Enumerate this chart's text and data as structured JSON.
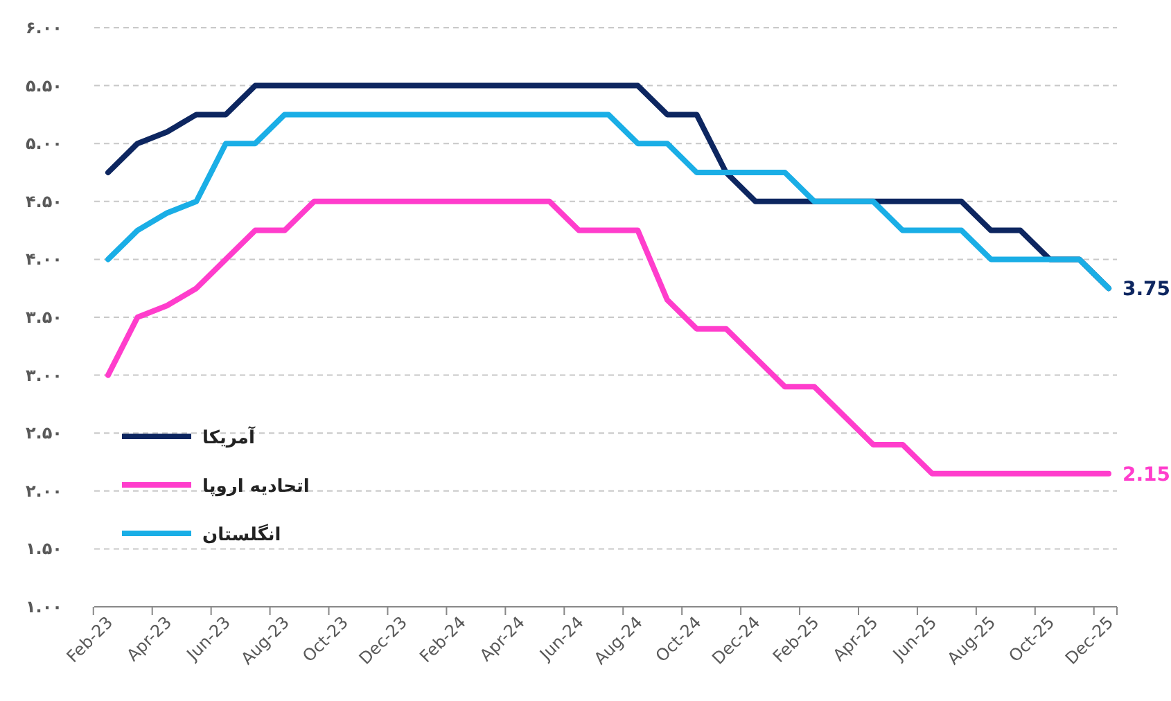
{
  "chart_data": {
    "type": "line",
    "categories": [
      "Feb-23",
      null,
      "Apr-23",
      null,
      "Jun-23",
      null,
      "Aug-23",
      null,
      "Oct-23",
      null,
      "Dec-23",
      null,
      "Feb-24",
      null,
      "Apr-24",
      null,
      "Jun-24",
      null,
      "Aug-24",
      null,
      "Oct-24",
      null,
      "Dec-24",
      null,
      "Feb-25",
      null,
      "Apr-25",
      null,
      "Jun-25",
      null,
      "Aug-25",
      null,
      "Oct-25",
      null,
      "Dec-25"
    ],
    "ylim": [
      1,
      6
    ],
    "yticks": [
      {
        "value": 1,
        "label": "۱.۰۰"
      },
      {
        "value": 1.5,
        "label": "۱.۵۰"
      },
      {
        "value": 2,
        "label": "۲.۰۰"
      },
      {
        "value": 2.5,
        "label": "۲.۵۰"
      },
      {
        "value": 3,
        "label": "۳.۰۰"
      },
      {
        "value": 3.5,
        "label": "۳.۵۰"
      },
      {
        "value": 4,
        "label": "۴.۰۰"
      },
      {
        "value": 4.5,
        "label": "۴.۵۰"
      },
      {
        "value": 5,
        "label": "۵.۰۰"
      },
      {
        "value": 5.5,
        "label": "۵.۵۰"
      },
      {
        "value": 6,
        "label": "۶.۰۰"
      }
    ],
    "grid": "y",
    "legend": "left",
    "marker": "none",
    "line_style": "solid",
    "series": [
      {
        "name": "آمریکا",
        "color": "#0d2660",
        "values": [
          4.75,
          5.0,
          5.1,
          5.25,
          5.25,
          5.5,
          5.5,
          5.5,
          5.5,
          5.5,
          5.5,
          5.5,
          5.5,
          5.5,
          5.5,
          5.5,
          5.5,
          5.5,
          5.5,
          5.25,
          5.25,
          4.75,
          4.5,
          4.5,
          4.5,
          4.5,
          4.5,
          4.5,
          4.5,
          4.5,
          4.25,
          4.25,
          4.0,
          4.0,
          3.75
        ],
        "value_labels": [
          null,
          null,
          null,
          null,
          null,
          null,
          null,
          null,
          null,
          null,
          null,
          null,
          null,
          null,
          null,
          null,
          null,
          null,
          null,
          null,
          null,
          null,
          null,
          null,
          null,
          null,
          null,
          null,
          null,
          null,
          null,
          null,
          null,
          null,
          "3.75"
        ]
      },
      {
        "name": "اتحادیه اروپا",
        "color": "#ff3dcc",
        "values": [
          3.0,
          3.5,
          3.6,
          3.75,
          4.0,
          4.25,
          4.25,
          4.5,
          4.5,
          4.5,
          4.5,
          4.5,
          4.5,
          4.5,
          4.5,
          4.5,
          4.25,
          4.25,
          4.25,
          3.65,
          3.4,
          3.4,
          3.15,
          2.9,
          2.9,
          2.65,
          2.4,
          2.4,
          2.15,
          2.15,
          2.15,
          2.15,
          2.15,
          2.15,
          2.15
        ],
        "value_labels": [
          null,
          null,
          null,
          null,
          null,
          null,
          null,
          null,
          null,
          null,
          null,
          null,
          null,
          null,
          null,
          null,
          null,
          null,
          null,
          null,
          null,
          null,
          null,
          null,
          null,
          null,
          null,
          null,
          null,
          null,
          null,
          null,
          null,
          null,
          "2.15"
        ]
      },
      {
        "name": "انگلستان",
        "color": "#1aaee6",
        "values": [
          4.0,
          4.25,
          4.4,
          4.5,
          5.0,
          5.0,
          5.25,
          5.25,
          5.25,
          5.25,
          5.25,
          5.25,
          5.25,
          5.25,
          5.25,
          5.25,
          5.25,
          5.25,
          5.0,
          5.0,
          4.75,
          4.75,
          4.75,
          4.75,
          4.5,
          4.5,
          4.5,
          4.25,
          4.25,
          4.25,
          4.0,
          4.0,
          4.0,
          4.0,
          3.75
        ]
      }
    ]
  }
}
